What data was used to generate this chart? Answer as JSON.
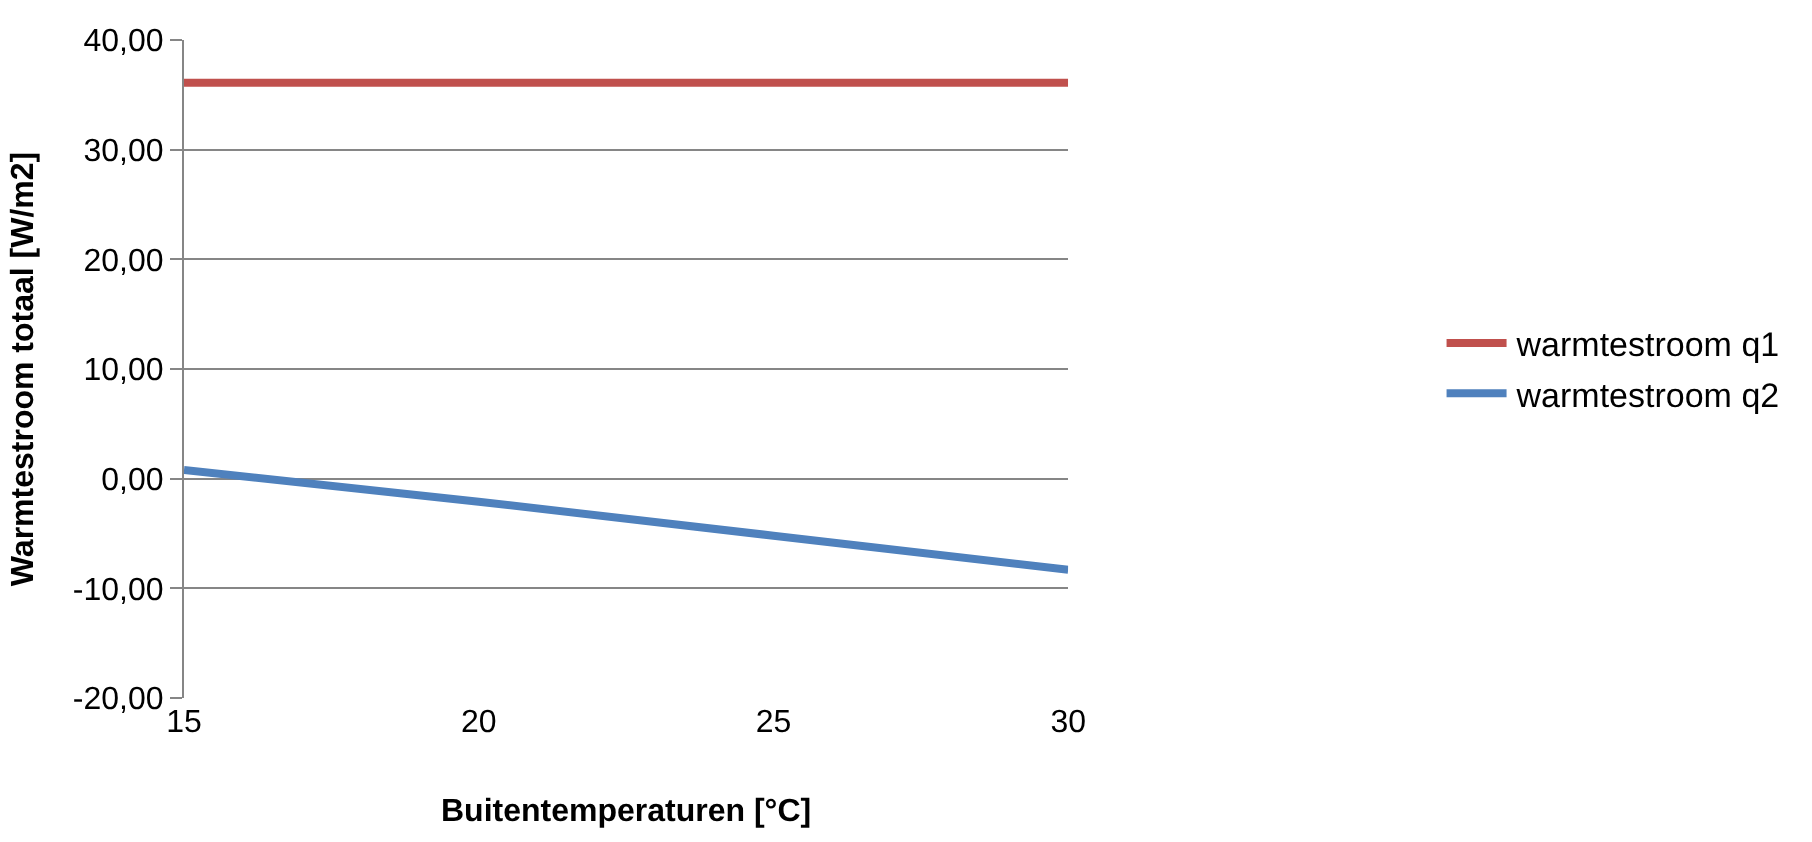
{
  "chart_data": {
    "type": "line",
    "xlabel": "Buitentemperaturen [°C]",
    "ylabel": "Warmtestroom totaal [W/m2]",
    "x": [
      15,
      20,
      25,
      30
    ],
    "series": [
      {
        "name": "warmtestroom q1",
        "color": "#c0504d",
        "values": [
          36.1,
          36.1,
          36.1,
          36.1
        ]
      },
      {
        "name": "warmtestroom q2",
        "color": "#4f81bd",
        "values": [
          0.8,
          -2.1,
          -5.2,
          -8.3
        ]
      }
    ],
    "xlim": [
      15,
      30
    ],
    "xticks": [
      15,
      20,
      25,
      30
    ],
    "ylim": [
      -20,
      40
    ],
    "yticks": [
      {
        "value": -20,
        "label": "-20,00"
      },
      {
        "value": -10,
        "label": "-10,00"
      },
      {
        "value": 0,
        "label": "0,00"
      },
      {
        "value": 10,
        "label": "10,00"
      },
      {
        "value": 20,
        "label": "20,00"
      },
      {
        "value": 30,
        "label": "30,00"
      },
      {
        "value": 40,
        "label": "40,00"
      }
    ],
    "grid": "y",
    "legend": "right",
    "marker": "none",
    "line_style": "solid"
  }
}
